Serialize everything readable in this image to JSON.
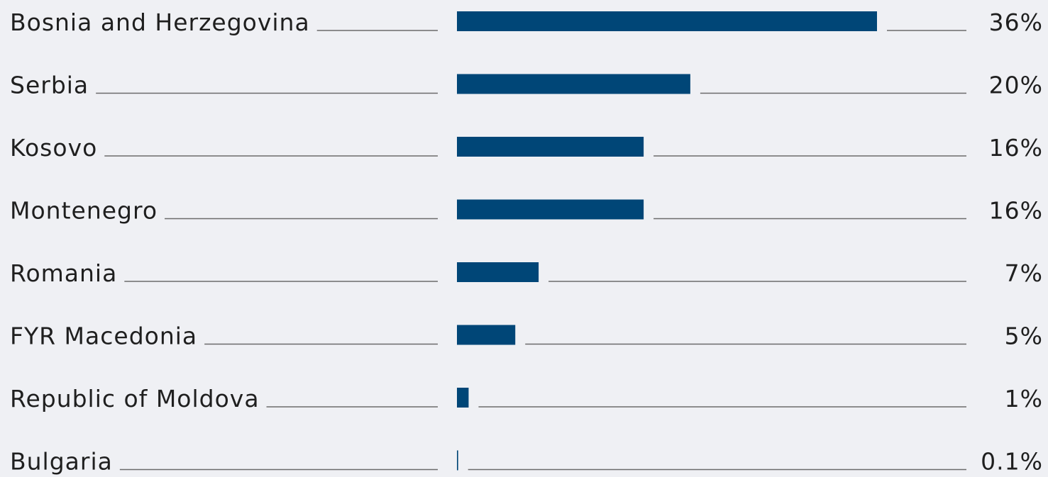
{
  "chart_data": {
    "type": "bar",
    "orientation": "horizontal",
    "categories": [
      "Bosnia and Herzegovina",
      "Serbia",
      "Kosovo",
      "Montenegro",
      "Romania",
      "FYR Macedonia",
      "Republic of Moldova",
      "Bulgaria"
    ],
    "values": [
      36,
      20,
      16,
      16,
      7,
      5,
      1,
      0.1
    ],
    "value_labels": [
      "36%",
      "20%",
      "16%",
      "16%",
      "7%",
      "5%",
      "1%",
      "0.1%"
    ],
    "color": "#004677"
  }
}
